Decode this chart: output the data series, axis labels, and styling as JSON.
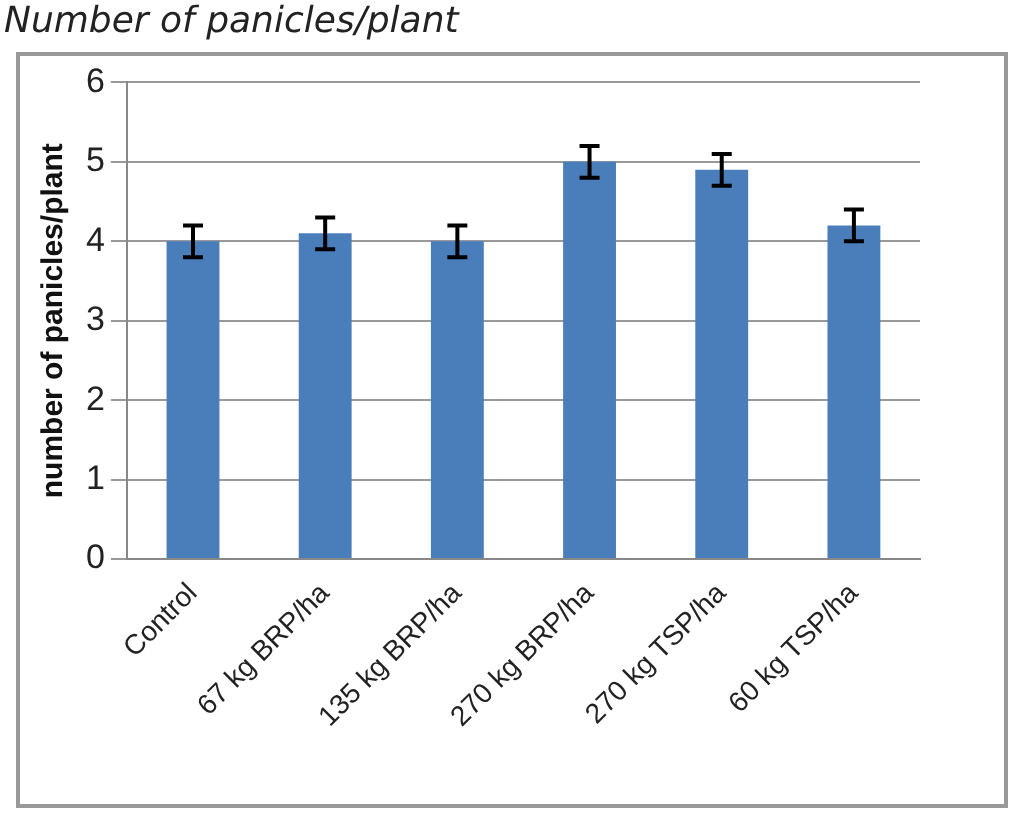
{
  "chart_data": {
    "type": "bar",
    "title": "Number of panicles/plant",
    "ylabel": "number of panicles/plant",
    "categories": [
      "Control",
      "67 kg BRP/ha",
      "135 kg BRP/ha",
      "270 kg BRP/ha",
      "270 kg TSP/ha",
      "60 kg TSP/ha"
    ],
    "values": [
      4.0,
      4.1,
      4.0,
      5.0,
      4.9,
      4.2
    ],
    "errors": [
      0.2,
      0.2,
      0.2,
      0.2,
      0.2,
      0.2
    ],
    "color": "#4a7ebb",
    "ylim": [
      0,
      6
    ],
    "yticks": [
      0,
      1,
      2,
      3,
      4,
      5,
      6
    ],
    "grid": "y",
    "legend": false
  }
}
